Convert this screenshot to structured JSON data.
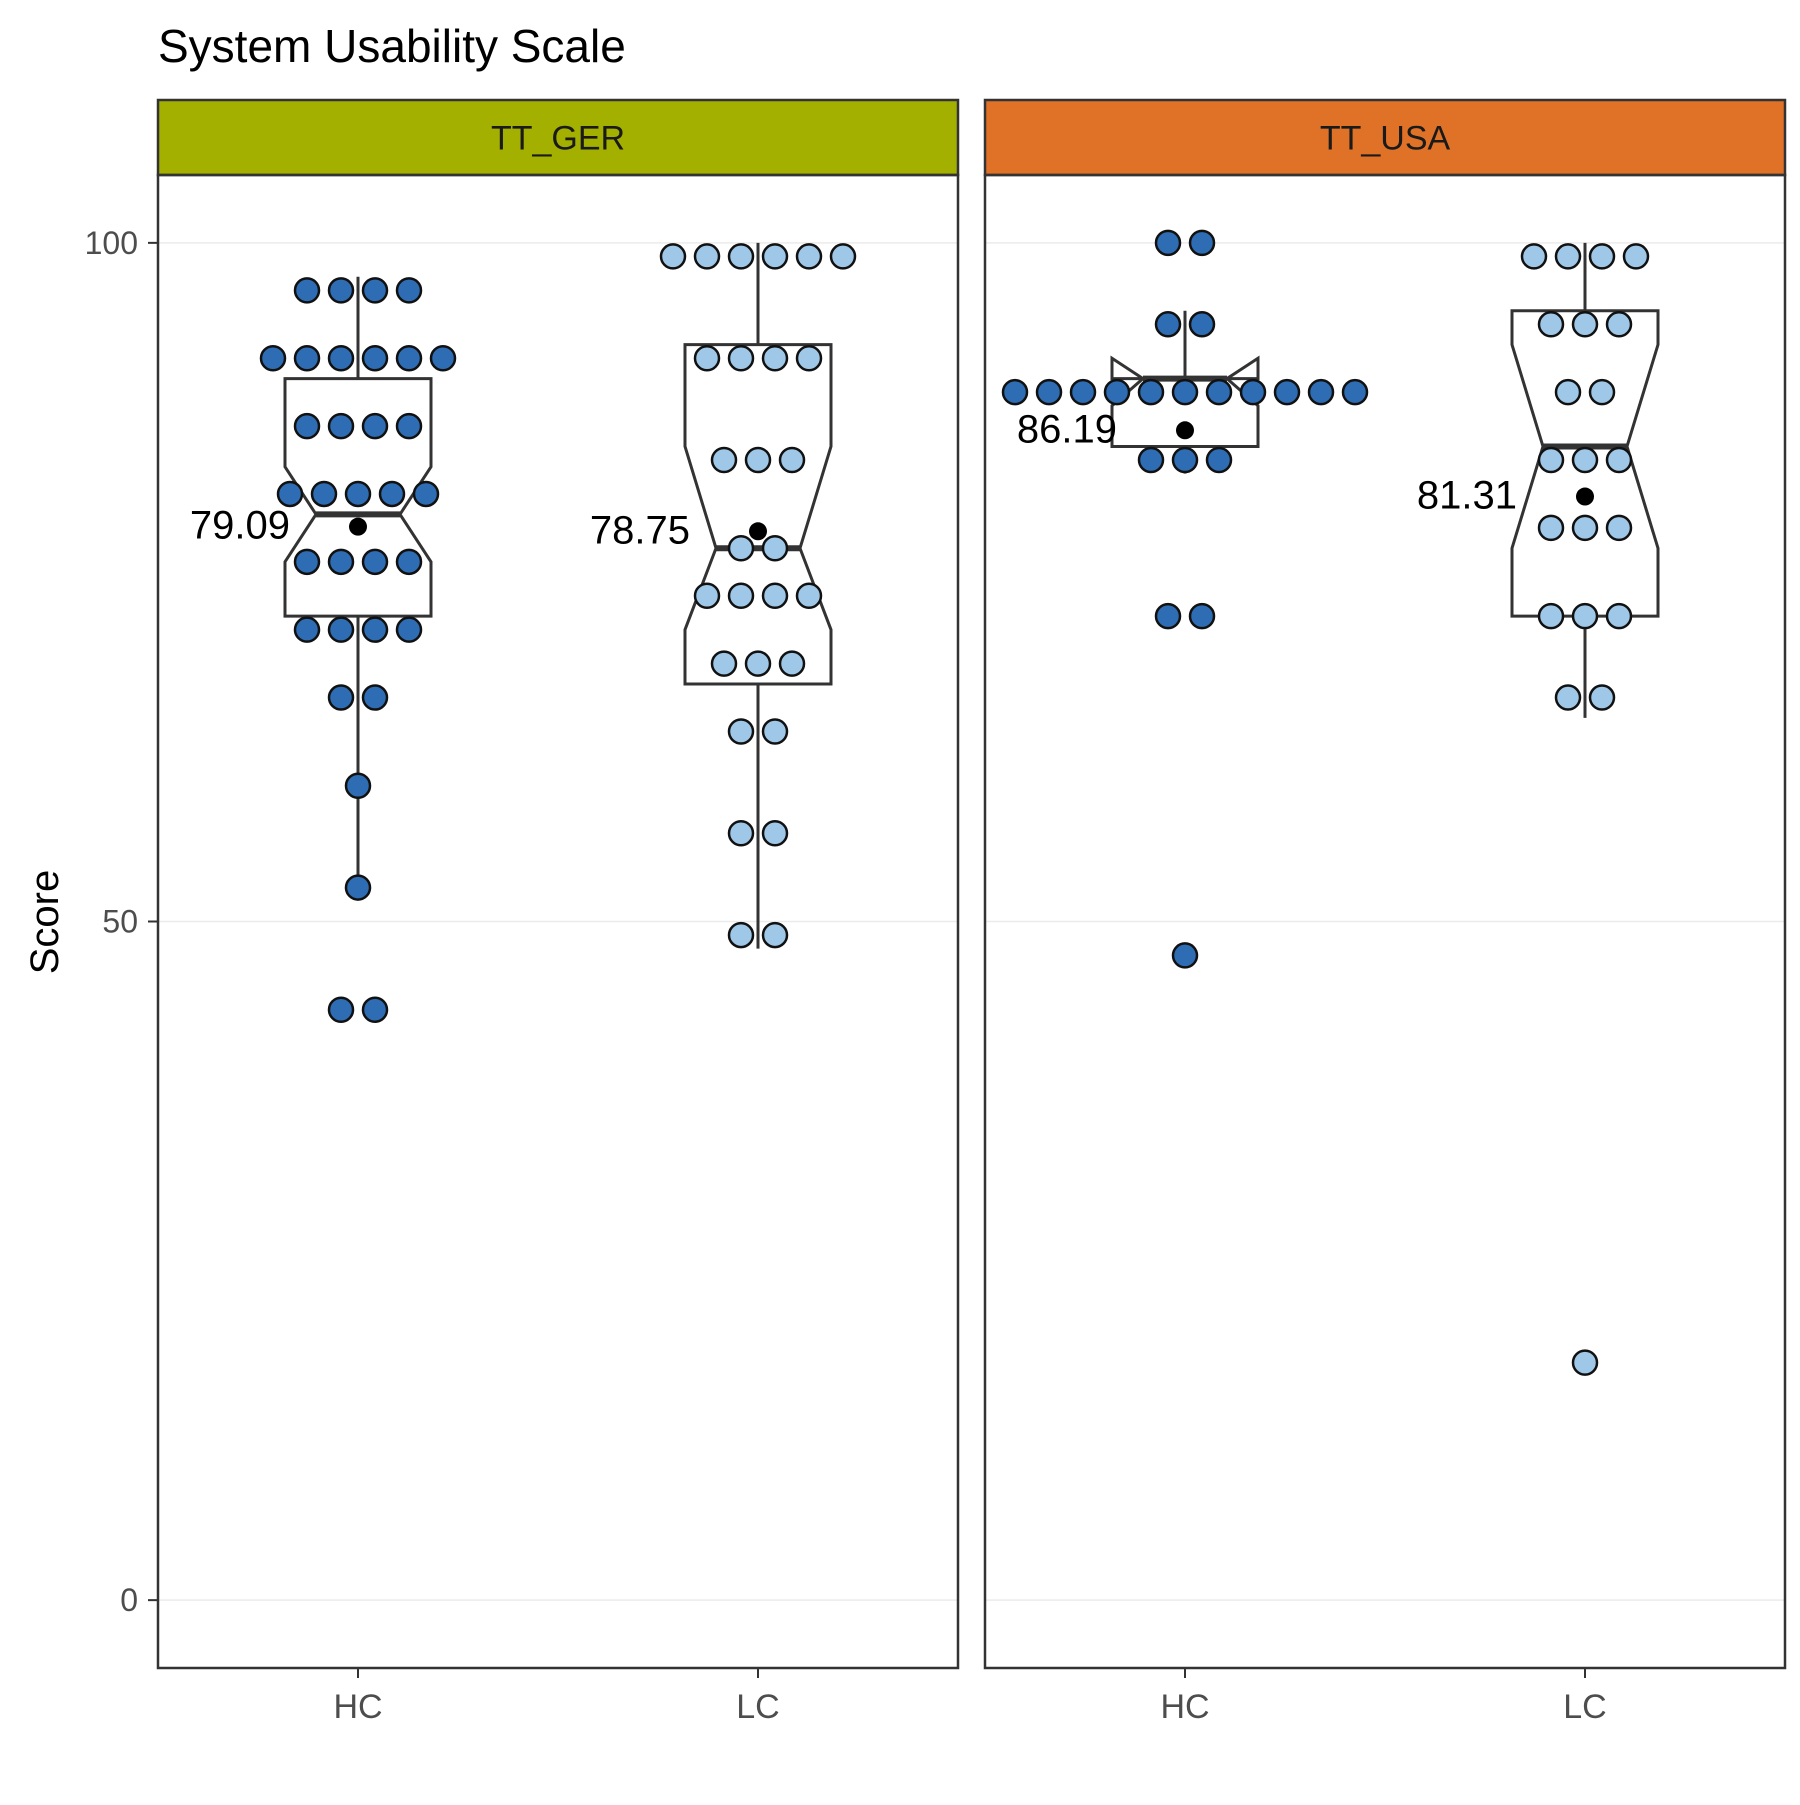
{
  "chart_data": {
    "type": "box",
    "title": "System Usability Scale",
    "ylabel": "Score",
    "xlabel": "",
    "ylim": [
      -5,
      105
    ],
    "yticks": [
      0,
      50,
      100
    ],
    "grid": true,
    "categories": [
      "HC",
      "LC"
    ],
    "colors": {
      "HC": "#2e6db4",
      "LC": "#9fc8e8",
      "mean": "#000000",
      "box_line": "#333333"
    },
    "panels": [
      {
        "name": "TT_GER",
        "strip_color": "#a3b000",
        "groups": [
          {
            "category": "HC",
            "mean": 79.09,
            "mean_label": "79.09",
            "box": {
              "whisker_low": 52.5,
              "q1": 72.5,
              "median": 80,
              "q3": 90,
              "whisker_high": 97.5,
              "notch_low": 76.5,
              "notch_high": 83.5
            },
            "points": [
              {
                "y": 96.5,
                "n": 4
              },
              {
                "y": 91.5,
                "n": 6
              },
              {
                "y": 86.5,
                "n": 4
              },
              {
                "y": 81.5,
                "n": 5
              },
              {
                "y": 76.5,
                "n": 4
              },
              {
                "y": 71.5,
                "n": 4
              },
              {
                "y": 66.5,
                "n": 2
              },
              {
                "y": 60,
                "n": 1
              },
              {
                "y": 52.5,
                "n": 1
              },
              {
                "y": 43.5,
                "n": 2
              }
            ]
          },
          {
            "category": "LC",
            "mean": 78.75,
            "mean_label": "78.75",
            "box": {
              "whisker_low": 48,
              "q1": 67.5,
              "median": 77.5,
              "q3": 92.5,
              "whisker_high": 100,
              "notch_low": 71.5,
              "notch_high": 85
            },
            "points": [
              {
                "y": 99,
                "n": 6
              },
              {
                "y": 91.5,
                "n": 4
              },
              {
                "y": 84,
                "n": 3
              },
              {
                "y": 77.5,
                "n": 2
              },
              {
                "y": 74,
                "n": 4
              },
              {
                "y": 69,
                "n": 3
              },
              {
                "y": 64,
                "n": 2
              },
              {
                "y": 56.5,
                "n": 2
              },
              {
                "y": 49,
                "n": 2
              }
            ]
          }
        ]
      },
      {
        "name": "TT_USA",
        "strip_color": "#e07228",
        "groups": [
          {
            "category": "HC",
            "mean": 86.19,
            "mean_label": "86.19",
            "box": {
              "whisker_low": 83,
              "q1": 85,
              "median": 90,
              "q3": 90,
              "whisker_high": 95,
              "notch_low": 88,
              "notch_high": 91.5
            },
            "points": [
              {
                "y": 100,
                "n": 2
              },
              {
                "y": 94,
                "n": 2
              },
              {
                "y": 89,
                "n": 11
              },
              {
                "y": 84,
                "n": 3
              },
              {
                "y": 72.5,
                "n": 2
              },
              {
                "y": 47.5,
                "n": 1
              }
            ]
          },
          {
            "category": "LC",
            "mean": 81.31,
            "mean_label": "81.31",
            "box": {
              "whisker_low": 65,
              "q1": 72.5,
              "median": 85,
              "q3": 95,
              "whisker_high": 100,
              "notch_low": 77.5,
              "notch_high": 92.5
            },
            "points": [
              {
                "y": 99,
                "n": 4
              },
              {
                "y": 94,
                "n": 3
              },
              {
                "y": 89,
                "n": 2
              },
              {
                "y": 84,
                "n": 3
              },
              {
                "y": 79,
                "n": 3
              },
              {
                "y": 72.5,
                "n": 3
              },
              {
                "y": 66.5,
                "n": 2
              },
              {
                "y": 17.5,
                "n": 1
              }
            ]
          }
        ]
      }
    ]
  }
}
